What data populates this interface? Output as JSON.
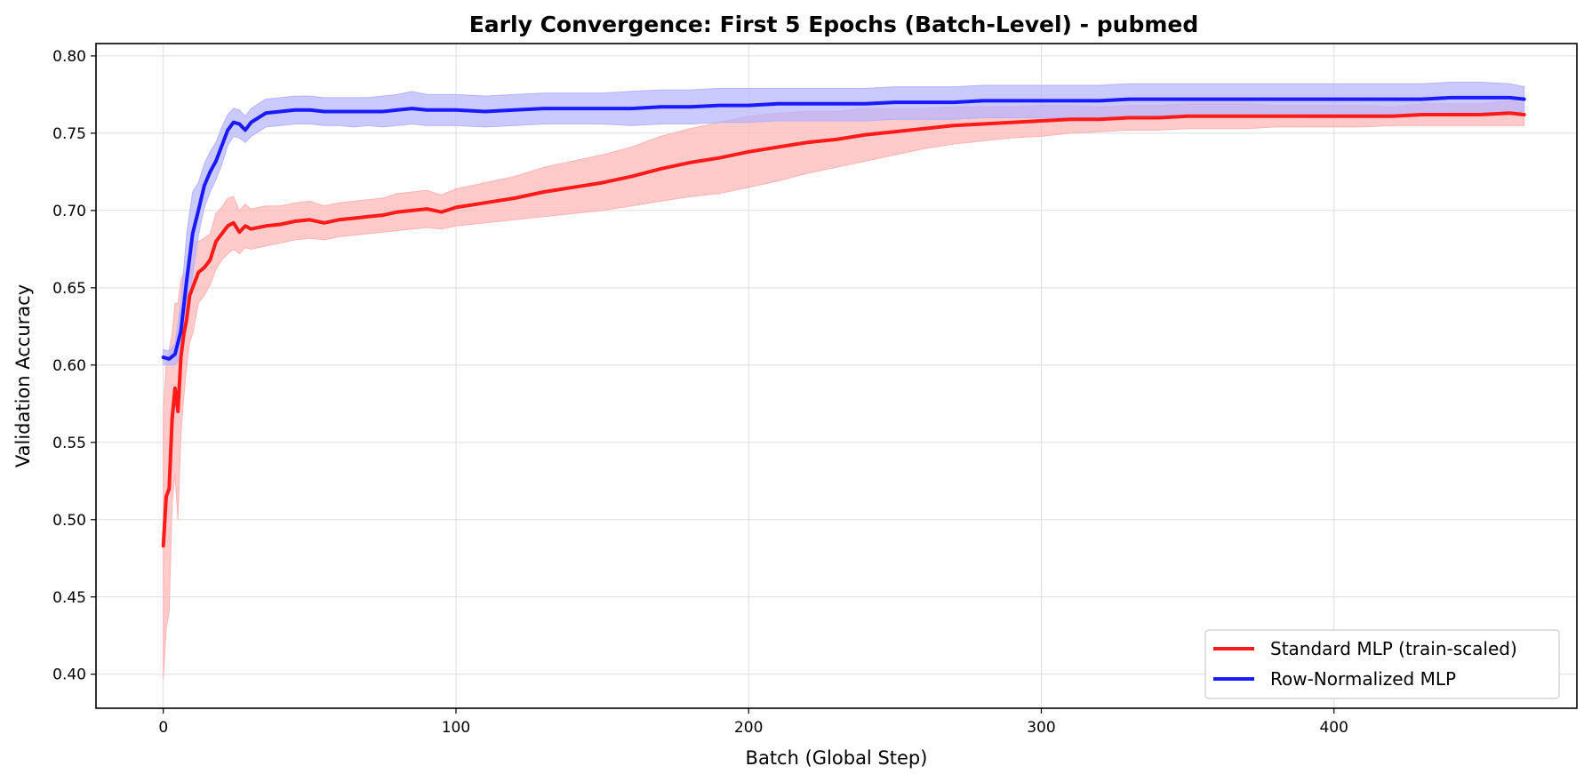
{
  "chart_data": {
    "type": "line",
    "title": "Early Convergence: First 5 Epochs (Batch-Level) - pubmed",
    "xlabel": "Batch (Global Step)",
    "ylabel": "Validation Accuracy",
    "xlim": [
      -23,
      483
    ],
    "ylim": [
      0.378,
      0.808
    ],
    "xticks": [
      0,
      100,
      200,
      300,
      400
    ],
    "yticks": [
      0.4,
      0.45,
      0.5,
      0.55,
      0.6,
      0.65,
      0.7,
      0.75,
      0.8
    ],
    "xtick_labels": [
      "0",
      "100",
      "200",
      "300",
      "400"
    ],
    "ytick_labels": [
      "0.40",
      "0.45",
      "0.50",
      "0.55",
      "0.60",
      "0.65",
      "0.70",
      "0.75",
      "0.80"
    ],
    "grid": true,
    "legend_position": "bottom-right",
    "series": [
      {
        "name": "Standard MLP (train-scaled)",
        "color": "#ff1a1a",
        "band_color": "#ffb3b3",
        "x": [
          0,
          1,
          2,
          3,
          4,
          5,
          6,
          7,
          8,
          9,
          10,
          12,
          14,
          16,
          18,
          20,
          22,
          24,
          26,
          28,
          30,
          35,
          40,
          45,
          50,
          55,
          60,
          65,
          70,
          75,
          80,
          85,
          90,
          95,
          100,
          110,
          120,
          130,
          140,
          150,
          160,
          170,
          180,
          190,
          200,
          210,
          220,
          230,
          240,
          250,
          260,
          270,
          280,
          290,
          300,
          310,
          320,
          330,
          340,
          350,
          360,
          370,
          380,
          390,
          400,
          410,
          420,
          430,
          440,
          450,
          460,
          465
        ],
        "values": [
          0.483,
          0.515,
          0.52,
          0.565,
          0.585,
          0.57,
          0.605,
          0.62,
          0.63,
          0.645,
          0.65,
          0.66,
          0.663,
          0.668,
          0.68,
          0.685,
          0.69,
          0.692,
          0.686,
          0.69,
          0.688,
          0.69,
          0.691,
          0.693,
          0.694,
          0.692,
          0.694,
          0.695,
          0.696,
          0.697,
          0.699,
          0.7,
          0.701,
          0.699,
          0.702,
          0.705,
          0.708,
          0.712,
          0.715,
          0.718,
          0.722,
          0.727,
          0.731,
          0.734,
          0.738,
          0.741,
          0.744,
          0.746,
          0.749,
          0.751,
          0.753,
          0.755,
          0.756,
          0.757,
          0.758,
          0.759,
          0.759,
          0.76,
          0.76,
          0.761,
          0.761,
          0.761,
          0.761,
          0.761,
          0.761,
          0.761,
          0.761,
          0.762,
          0.762,
          0.762,
          0.763,
          0.762
        ],
        "band_lower": [
          0.397,
          0.43,
          0.44,
          0.51,
          0.53,
          0.5,
          0.555,
          0.58,
          0.6,
          0.615,
          0.62,
          0.64,
          0.645,
          0.652,
          0.662,
          0.668,
          0.672,
          0.675,
          0.672,
          0.676,
          0.675,
          0.677,
          0.679,
          0.681,
          0.682,
          0.681,
          0.683,
          0.684,
          0.685,
          0.686,
          0.687,
          0.688,
          0.689,
          0.688,
          0.69,
          0.692,
          0.694,
          0.696,
          0.698,
          0.7,
          0.703,
          0.706,
          0.709,
          0.711,
          0.715,
          0.719,
          0.724,
          0.728,
          0.732,
          0.736,
          0.74,
          0.743,
          0.745,
          0.747,
          0.748,
          0.75,
          0.751,
          0.752,
          0.752,
          0.753,
          0.753,
          0.753,
          0.754,
          0.754,
          0.754,
          0.754,
          0.755,
          0.755,
          0.755,
          0.755,
          0.755,
          0.755
        ],
        "band_upper": [
          0.57,
          0.6,
          0.61,
          0.62,
          0.64,
          0.64,
          0.655,
          0.66,
          0.66,
          0.675,
          0.68,
          0.68,
          0.682,
          0.685,
          0.698,
          0.702,
          0.708,
          0.709,
          0.7,
          0.704,
          0.701,
          0.703,
          0.703,
          0.705,
          0.706,
          0.703,
          0.705,
          0.706,
          0.707,
          0.708,
          0.711,
          0.712,
          0.713,
          0.71,
          0.714,
          0.718,
          0.722,
          0.728,
          0.732,
          0.736,
          0.741,
          0.748,
          0.753,
          0.757,
          0.761,
          0.763,
          0.764,
          0.764,
          0.766,
          0.766,
          0.766,
          0.767,
          0.767,
          0.767,
          0.768,
          0.768,
          0.767,
          0.768,
          0.768,
          0.769,
          0.769,
          0.769,
          0.768,
          0.768,
          0.768,
          0.768,
          0.767,
          0.769,
          0.769,
          0.769,
          0.771,
          0.769
        ]
      },
      {
        "name": "Row-Normalized MLP",
        "color": "#1a1aff",
        "band_color": "#b3b3ff",
        "x": [
          0,
          2,
          4,
          6,
          8,
          10,
          12,
          14,
          16,
          18,
          20,
          22,
          24,
          26,
          28,
          30,
          35,
          40,
          45,
          50,
          55,
          60,
          65,
          70,
          75,
          80,
          85,
          90,
          95,
          100,
          110,
          120,
          130,
          140,
          150,
          160,
          170,
          180,
          190,
          200,
          210,
          220,
          230,
          240,
          250,
          260,
          270,
          280,
          290,
          300,
          310,
          320,
          330,
          340,
          350,
          360,
          370,
          380,
          390,
          400,
          410,
          420,
          430,
          440,
          450,
          460,
          465
        ],
        "values": [
          0.605,
          0.604,
          0.607,
          0.622,
          0.655,
          0.685,
          0.7,
          0.716,
          0.725,
          0.732,
          0.742,
          0.752,
          0.757,
          0.756,
          0.752,
          0.757,
          0.763,
          0.764,
          0.765,
          0.765,
          0.764,
          0.764,
          0.764,
          0.764,
          0.764,
          0.765,
          0.766,
          0.765,
          0.765,
          0.765,
          0.764,
          0.765,
          0.766,
          0.766,
          0.766,
          0.766,
          0.767,
          0.767,
          0.768,
          0.768,
          0.769,
          0.769,
          0.769,
          0.769,
          0.77,
          0.77,
          0.77,
          0.771,
          0.771,
          0.771,
          0.771,
          0.771,
          0.772,
          0.772,
          0.772,
          0.772,
          0.772,
          0.772,
          0.772,
          0.772,
          0.772,
          0.772,
          0.772,
          0.773,
          0.773,
          0.773,
          0.772
        ],
        "band_lower": [
          0.6,
          0.6,
          0.6,
          0.605,
          0.625,
          0.658,
          0.684,
          0.702,
          0.712,
          0.72,
          0.73,
          0.742,
          0.748,
          0.747,
          0.744,
          0.748,
          0.754,
          0.755,
          0.756,
          0.756,
          0.755,
          0.755,
          0.754,
          0.755,
          0.754,
          0.755,
          0.756,
          0.755,
          0.755,
          0.755,
          0.754,
          0.755,
          0.756,
          0.756,
          0.756,
          0.755,
          0.756,
          0.756,
          0.757,
          0.757,
          0.758,
          0.758,
          0.758,
          0.758,
          0.759,
          0.759,
          0.759,
          0.76,
          0.76,
          0.76,
          0.76,
          0.76,
          0.761,
          0.761,
          0.761,
          0.761,
          0.761,
          0.761,
          0.762,
          0.762,
          0.762,
          0.762,
          0.762,
          0.763,
          0.763,
          0.763,
          0.764
        ],
        "band_upper": [
          0.61,
          0.609,
          0.614,
          0.64,
          0.685,
          0.712,
          0.718,
          0.73,
          0.738,
          0.744,
          0.754,
          0.762,
          0.766,
          0.765,
          0.761,
          0.766,
          0.772,
          0.773,
          0.774,
          0.774,
          0.773,
          0.773,
          0.773,
          0.773,
          0.774,
          0.775,
          0.777,
          0.775,
          0.775,
          0.775,
          0.774,
          0.775,
          0.776,
          0.776,
          0.776,
          0.777,
          0.778,
          0.778,
          0.779,
          0.779,
          0.779,
          0.779,
          0.779,
          0.779,
          0.78,
          0.78,
          0.78,
          0.781,
          0.781,
          0.781,
          0.781,
          0.781,
          0.782,
          0.782,
          0.782,
          0.782,
          0.782,
          0.782,
          0.782,
          0.782,
          0.782,
          0.782,
          0.782,
          0.783,
          0.783,
          0.782,
          0.78
        ]
      }
    ]
  }
}
